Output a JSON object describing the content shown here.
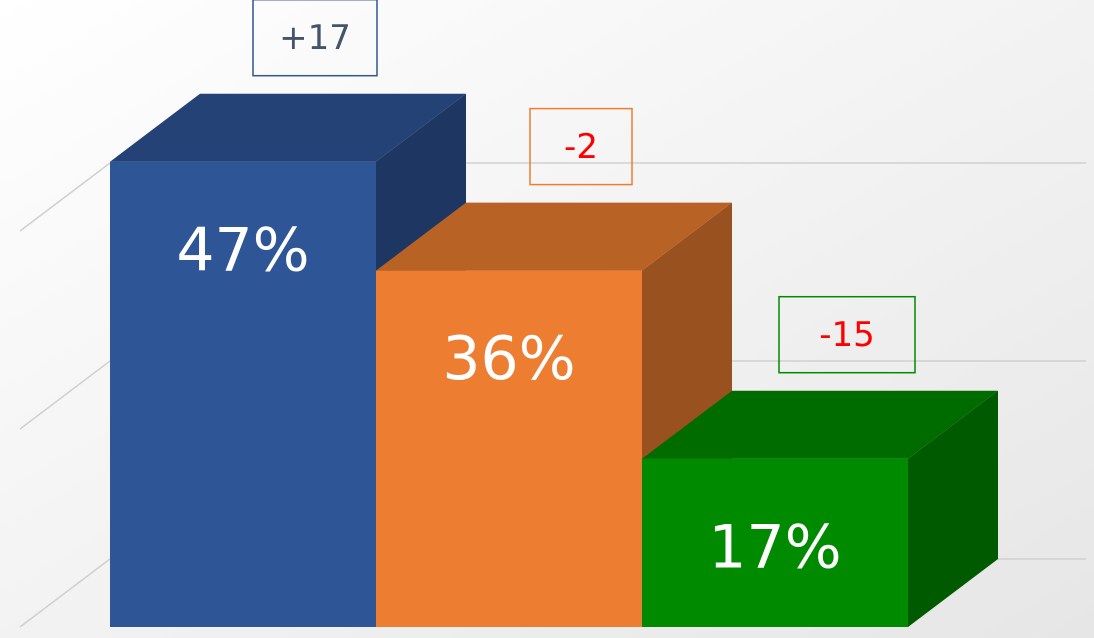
{
  "chart_data": {
    "type": "bar3d",
    "categories": [
      null,
      null,
      null
    ],
    "values": [
      47,
      36,
      17
    ],
    "value_labels": [
      "47%",
      "36%",
      "17%"
    ],
    "colors": [
      "#2e5596",
      "#ed7d31",
      "#008a00"
    ],
    "annotations": [
      "+17",
      "-2",
      "-15"
    ],
    "annotation_text_colors": [
      "#44546a",
      "#ff0000",
      "#ff0000"
    ],
    "ylim": [
      0,
      50
    ],
    "yticks": [
      0,
      20,
      40
    ],
    "grid": true
  }
}
